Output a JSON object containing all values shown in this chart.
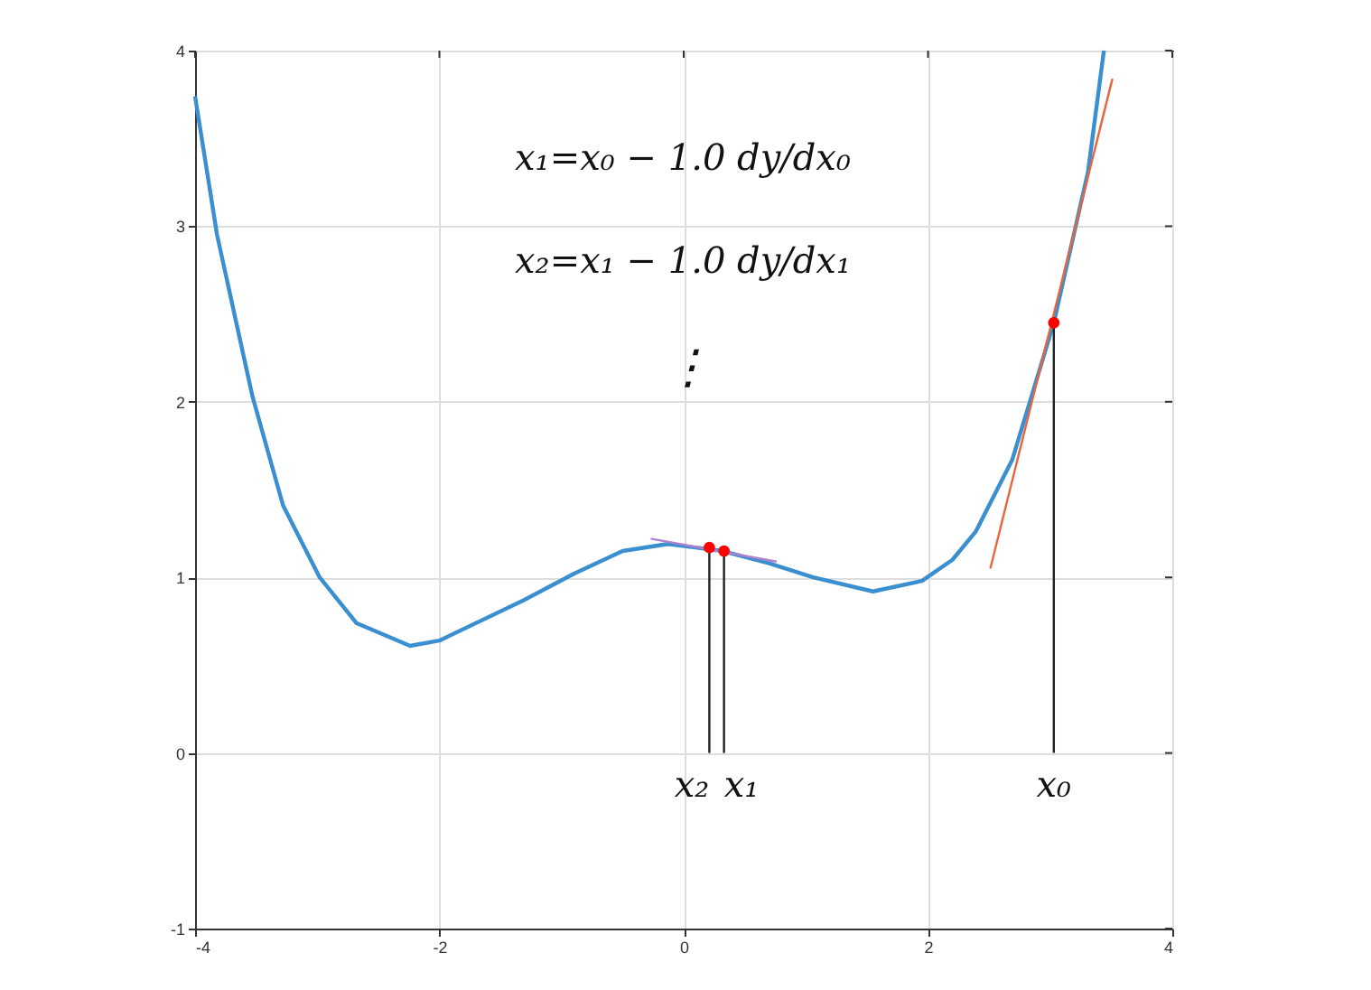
{
  "chart_data": {
    "type": "line",
    "xlim": [
      -4,
      4
    ],
    "xticks": [
      -4,
      -2,
      0,
      2,
      4
    ],
    "ylim": [
      -1,
      4
    ],
    "yticks": [
      -1,
      0,
      1,
      2,
      3,
      4
    ],
    "grid": true,
    "series": [
      {
        "color": "#3a8fd0",
        "x": [
          -4,
          -3.82,
          -3.53,
          -3.28,
          -2.98,
          -2.68,
          -2.24,
          -2.0,
          -1.31,
          -0.9,
          -0.5,
          -0.13,
          0.32,
          0.7,
          1.06,
          1.55,
          1.95,
          2.2,
          2.39,
          2.69,
          3.03,
          3.31,
          3.44
        ],
        "values": [
          3.74,
          2.95,
          2.03,
          1.41,
          1.0,
          0.74,
          0.61,
          0.64,
          0.87,
          1.02,
          1.15,
          1.19,
          1.15,
          1.08,
          1.0,
          0.92,
          0.98,
          1.1,
          1.26,
          1.67,
          2.45,
          3.31,
          4.0
        ]
      },
      {
        "color": "#e8643c",
        "x": [
          2.51,
          3.51
        ],
        "values": [
          1.05,
          3.84
        ]
      },
      {
        "color": "#b080d0",
        "x": [
          -0.27,
          0.76
        ],
        "values": [
          1.22,
          1.09
        ]
      },
      {
        "type": "line",
        "color": "#222222",
        "x": [
          3.03,
          3.03
        ],
        "values": [
          0,
          2.45
        ]
      },
      {
        "type": "line",
        "color": "#222222",
        "x": [
          0.33,
          0.33
        ],
        "values": [
          0,
          1.15
        ]
      },
      {
        "type": "line",
        "color": "#222222",
        "x": [
          0.21,
          0.21
        ],
        "values": [
          0,
          1.17
        ]
      },
      {
        "type": "scatter",
        "color": "#ff0000",
        "x": [
          3.03,
          0.33,
          0.21
        ],
        "values": [
          2.45,
          1.15,
          1.17
        ]
      }
    ],
    "annotations": [
      "x₁=x₀ − 1.0 dy/dx₀",
      "x₂=x₁ − 1.0 dy/dx₁",
      "⋮",
      {
        "text": "x₀",
        "x": 3.03,
        "y": 0
      },
      {
        "text": "x₁",
        "x": 0.33,
        "y": 0
      },
      {
        "text": "x₂",
        "x": 0.21,
        "y": 0
      }
    ]
  }
}
